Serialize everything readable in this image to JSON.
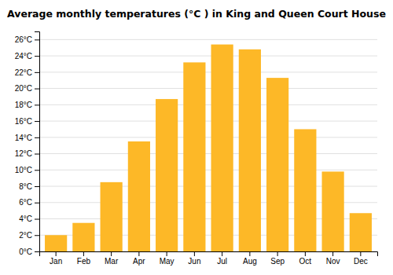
{
  "chart_data": {
    "type": "bar",
    "title": "Average monthly temperatures (°C ) in King and Queen Court House",
    "categories": [
      "Jan",
      "Feb",
      "Mar",
      "Apr",
      "May",
      "Jun",
      "Jul",
      "Aug",
      "Sep",
      "Oct",
      "Nov",
      "Dec"
    ],
    "values": [
      2.0,
      3.5,
      8.5,
      13.5,
      18.7,
      23.2,
      25.4,
      24.8,
      21.3,
      15.0,
      9.8,
      4.7
    ],
    "color": "#FDB827",
    "ylim": [
      0,
      27
    ],
    "yticks": [
      {
        "value": 0,
        "label": "0°C"
      },
      {
        "value": 2,
        "label": "2°C"
      },
      {
        "value": 4,
        "label": "4°C"
      },
      {
        "value": 6,
        "label": "6°C"
      },
      {
        "value": 8,
        "label": "8°C"
      },
      {
        "value": 10,
        "label": "10°C"
      },
      {
        "value": 12,
        "label": "12°C"
      },
      {
        "value": 14,
        "label": "14°C"
      },
      {
        "value": 16,
        "label": "16°C"
      },
      {
        "value": 18,
        "label": "18°C"
      },
      {
        "value": 20,
        "label": "20°C"
      },
      {
        "value": 22,
        "label": "22°C"
      },
      {
        "value": 24,
        "label": "24°C"
      },
      {
        "value": 26,
        "label": "26°C"
      }
    ],
    "grid": true
  }
}
